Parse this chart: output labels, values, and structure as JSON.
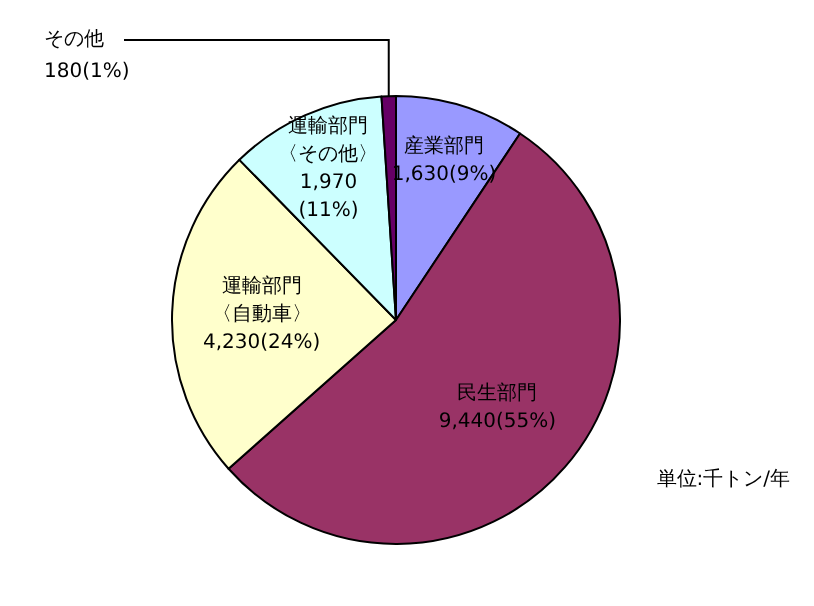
{
  "chart_data": {
    "type": "pie",
    "categories": [
      "産業部門",
      "民生部門",
      "運輸部門〈自動車〉",
      "運輸部門〈その他〉",
      "その他"
    ],
    "values": [
      1630,
      9440,
      4230,
      1970,
      180
    ],
    "value_labels": [
      "1,630(9%)",
      "9,440(55%)",
      "4,230(24%)",
      "1,970(11%)",
      "180(1%)"
    ],
    "colors": [
      "#9999ff",
      "#993366",
      "#ffffcc",
      "#ccffff",
      "#660066"
    ],
    "annotations": [
      "単位:千トン/年"
    ],
    "legend": false
  }
}
